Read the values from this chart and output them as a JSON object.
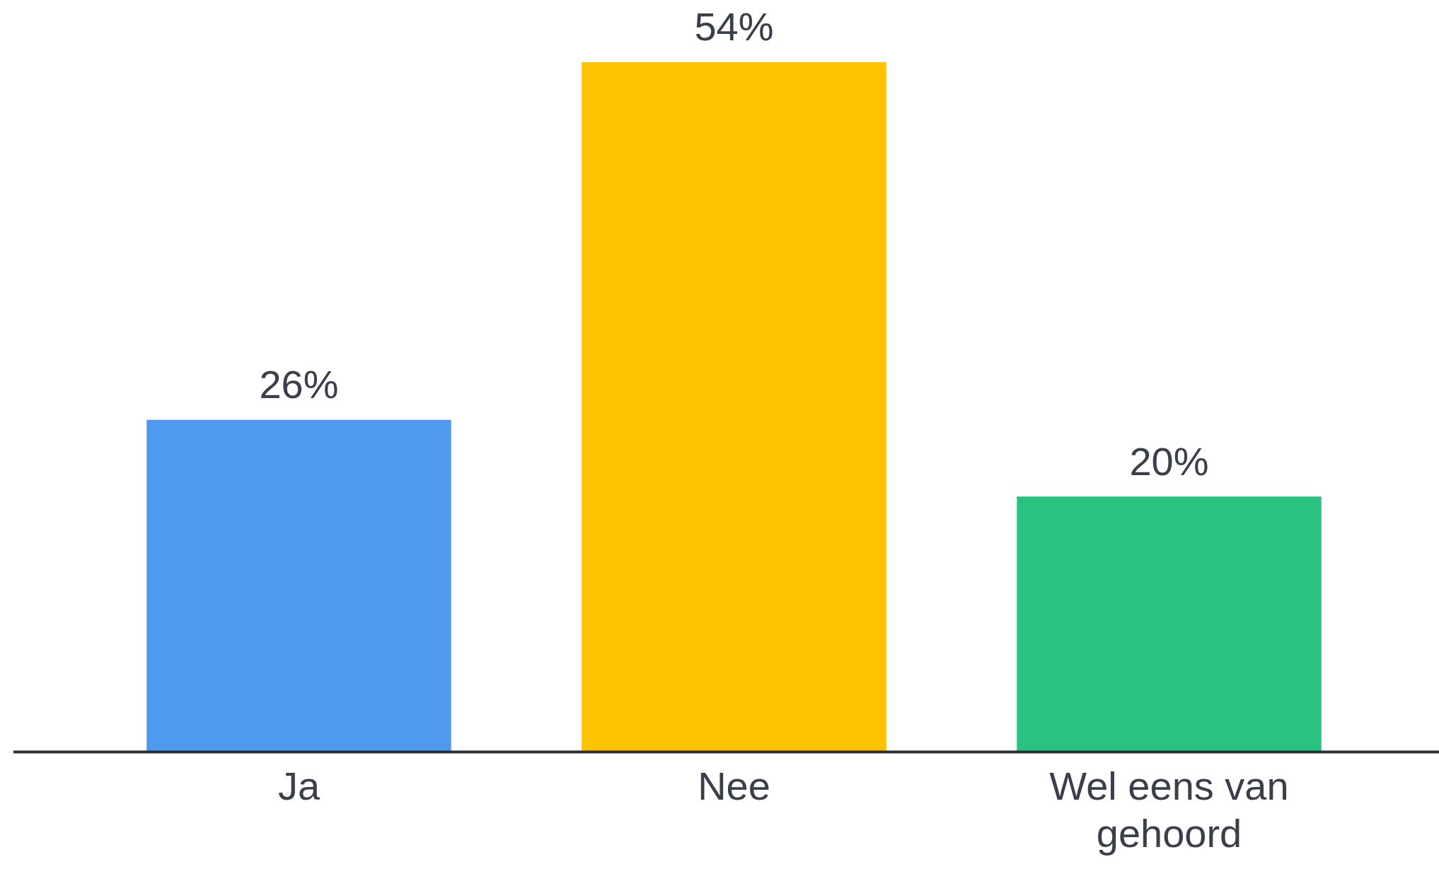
{
  "chart_data": {
    "type": "bar",
    "categories": [
      "Ja",
      "Nee",
      "Wel eens van gehoord"
    ],
    "values": [
      26,
      54,
      20
    ],
    "colors": [
      "#4f9aee",
      "#fdc300",
      "#29c381"
    ],
    "value_labels": [
      "26%",
      "54%",
      "20%"
    ]
  }
}
